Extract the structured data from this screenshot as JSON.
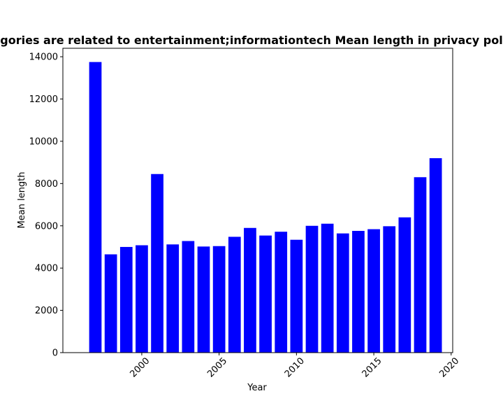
{
  "chart_data": {
    "type": "bar",
    "title": "gories are related to entertainment;informationtech Mean length in privacy pol",
    "xlabel": "Year",
    "ylabel": "Mean length",
    "x": [
      1997,
      1998,
      1999,
      2000,
      2001,
      2002,
      2003,
      2004,
      2005,
      2006,
      2007,
      2008,
      2009,
      2010,
      2011,
      2012,
      2013,
      2014,
      2015,
      2016,
      2017,
      2018,
      2019
    ],
    "values": [
      13750,
      4650,
      5000,
      5080,
      8450,
      5120,
      5280,
      5020,
      5040,
      5480,
      5900,
      5540,
      5720,
      5340,
      6000,
      6100,
      5640,
      5760,
      5840,
      5980,
      6400,
      8300,
      9200
    ],
    "xlim": [
      1994.9,
      2020.1
    ],
    "ylim": [
      0,
      14400
    ],
    "xticks": [
      2000,
      2005,
      2010,
      2015,
      2020
    ],
    "xtick_labels": [
      "2000",
      "2005",
      "2010",
      "2015",
      "2020"
    ],
    "yticks": [
      0,
      2000,
      4000,
      6000,
      8000,
      10000,
      12000,
      14000
    ],
    "ytick_labels": [
      "0",
      "2000",
      "4000",
      "6000",
      "8000",
      "10000",
      "12000",
      "14000"
    ],
    "bar_color": "#0000ff",
    "grid": false,
    "legend": "none"
  }
}
